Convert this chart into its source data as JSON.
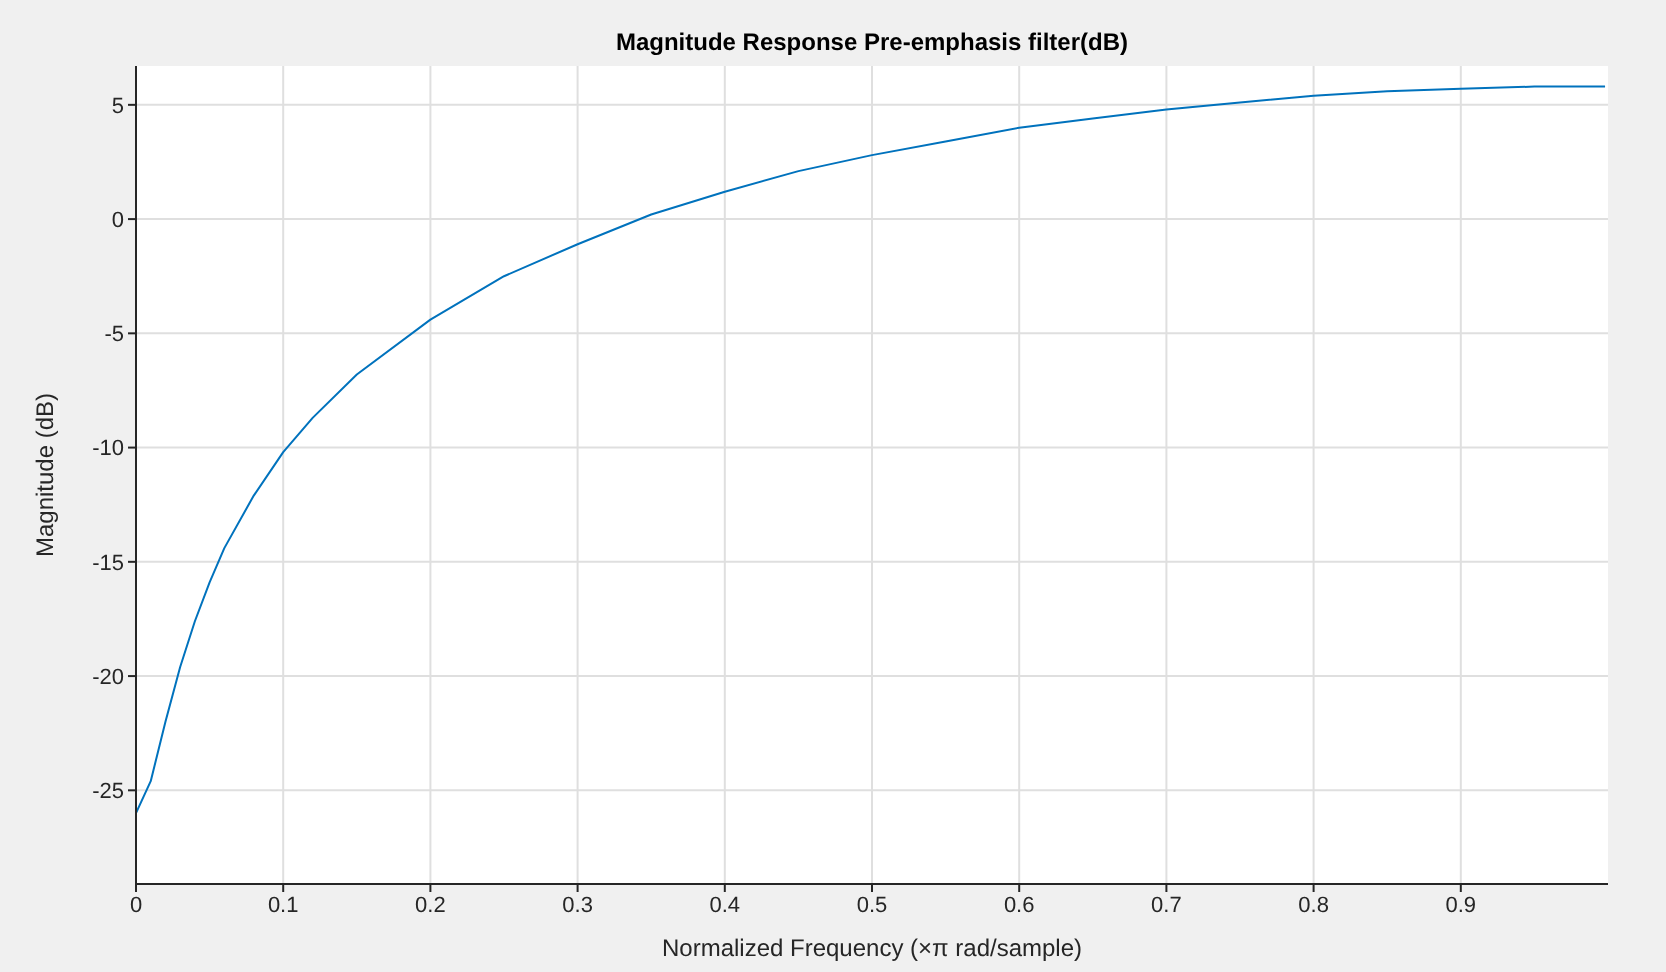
{
  "chart_data": {
    "type": "line",
    "title": "Magnitude Response Pre-emphasis filter(dB)",
    "xlabel": "Normalized Frequency (×π rad/sample)",
    "ylabel": "Magnitude (dB)",
    "x": [
      0,
      0.01,
      0.02,
      0.03,
      0.04,
      0.05,
      0.06,
      0.08,
      0.1,
      0.12,
      0.15,
      0.2,
      0.25,
      0.3,
      0.35,
      0.4,
      0.45,
      0.5,
      0.55,
      0.6,
      0.65,
      0.7,
      0.75,
      0.8,
      0.85,
      0.9,
      0.95,
      0.998
    ],
    "series": [
      {
        "color": "#0072bd",
        "values": [
          -26.0,
          -24.6,
          -22.0,
          -19.6,
          -17.6,
          -15.9,
          -14.4,
          -12.1,
          -10.2,
          -8.7,
          -6.8,
          -4.4,
          -2.5,
          -1.1,
          0.2,
          1.2,
          2.1,
          2.8,
          3.4,
          4.0,
          4.4,
          4.8,
          5.1,
          5.4,
          5.6,
          5.7,
          5.8,
          5.8
        ]
      }
    ],
    "xlim": [
      0,
      1
    ],
    "xticks": [
      0,
      0.1,
      0.2,
      0.3,
      0.4,
      0.5,
      0.6,
      0.7,
      0.8,
      0.9
    ],
    "ylim": [
      -29.1,
      6.7
    ],
    "yticks": [
      -25,
      -20,
      -15,
      -10,
      -5,
      0,
      5
    ],
    "grid": true,
    "marker": "none",
    "line_style": "solid"
  }
}
